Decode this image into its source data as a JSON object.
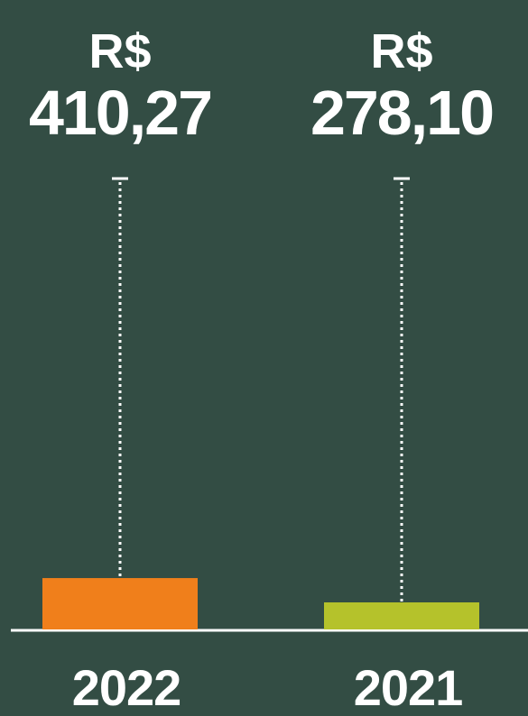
{
  "chart_data": {
    "type": "bar",
    "categories": [
      "2022",
      "2021"
    ],
    "values": [
      410.27,
      278.1
    ],
    "value_labels": [
      "R$ 410,27",
      "R$ 278,10"
    ],
    "colors": [
      "#f07f1b",
      "#b5c22b"
    ],
    "ylim": [
      131,
      2583
    ]
  }
}
